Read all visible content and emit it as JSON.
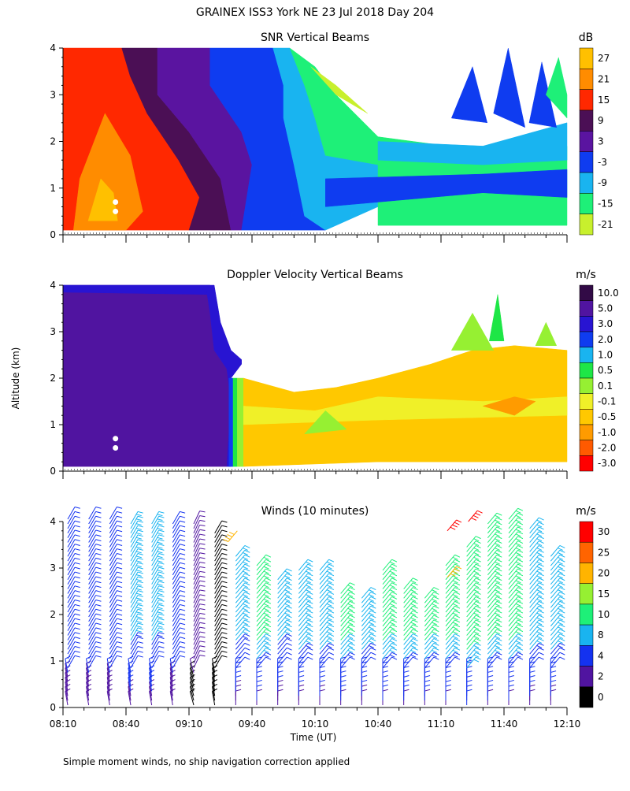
{
  "figure": {
    "title": "GRAINEX ISS3 York NE  23 Jul 2018 Day 204",
    "footnote": "Simple moment winds, no ship navigation correction applied",
    "ylabel": "Altitude (km)",
    "xlabel": "Time (UT)"
  },
  "chart_data": [
    {
      "type": "heatmap",
      "title": "SNR Vertical Beams",
      "units": "dB",
      "y_ticks": [
        "0",
        "1",
        "2",
        "3",
        "4"
      ],
      "ylim": [
        0,
        4
      ],
      "xlim": [
        "08:10",
        "12:10"
      ],
      "colorbar": {
        "labels": [
          "27",
          "21",
          "15",
          "9",
          "3",
          "-3",
          "-9",
          "-15",
          "-21"
        ],
        "colors": [
          "#ffc000",
          "#ff8c00",
          "#ff2800",
          "#4b0f55",
          "#5a14a0",
          "#0f3cf0",
          "#19b4f0",
          "#1ef078",
          "#c8f02d"
        ]
      },
      "regions": [
        {
          "color": "#ff2800",
          "pts": [
            [
              0,
              0.1
            ],
            [
              0,
              4
            ],
            [
              28,
              4
            ],
            [
              32,
              3.4
            ],
            [
              40,
              2.6
            ],
            [
              55,
              1.6
            ],
            [
              65,
              0.8
            ],
            [
              60,
              0.1
            ]
          ]
        },
        {
          "color": "#ff8c00",
          "pts": [
            [
              5,
              0.1
            ],
            [
              8,
              1.2
            ],
            [
              20,
              2.6
            ],
            [
              32,
              1.7
            ],
            [
              38,
              0.5
            ],
            [
              30,
              0.1
            ]
          ]
        },
        {
          "color": "#ffc000",
          "pts": [
            [
              12,
              0.3
            ],
            [
              18,
              1.2
            ],
            [
              24,
              0.9
            ],
            [
              26,
              0.3
            ]
          ]
        },
        {
          "color": "#4b0f55",
          "pts": [
            [
              28,
              4
            ],
            [
              45,
              4
            ],
            [
              45,
              3
            ],
            [
              60,
              2.2
            ],
            [
              75,
              1.2
            ],
            [
              80,
              0.1
            ],
            [
              60,
              0.1
            ],
            [
              65,
              0.8
            ],
            [
              55,
              1.6
            ],
            [
              40,
              2.6
            ],
            [
              32,
              3.4
            ]
          ]
        },
        {
          "color": "#5a14a0",
          "pts": [
            [
              45,
              4
            ],
            [
              70,
              4
            ],
            [
              70,
              3.2
            ],
            [
              85,
              2.2
            ],
            [
              90,
              1.5
            ],
            [
              85,
              0.1
            ],
            [
              80,
              0.1
            ],
            [
              75,
              1.2
            ],
            [
              60,
              2.2
            ],
            [
              45,
              3
            ]
          ]
        },
        {
          "color": "#0f3cf0",
          "pts": [
            [
              70,
              4
            ],
            [
              100,
              4
            ],
            [
              105,
              3.2
            ],
            [
              105,
              2.5
            ],
            [
              110,
              1.5
            ],
            [
              115,
              0.4
            ],
            [
              125,
              0.1
            ],
            [
              85,
              0.1
            ],
            [
              90,
              1.5
            ],
            [
              85,
              2.2
            ],
            [
              70,
              3.2
            ]
          ]
        },
        {
          "color": "#19b4f0",
          "pts": [
            [
              100,
              4
            ],
            [
              108,
              4
            ],
            [
              115,
              3.2
            ],
            [
              120,
              2.5
            ],
            [
              125,
              1.7
            ],
            [
              150,
              1.5
            ],
            [
              150,
              0.6
            ],
            [
              125,
              0.1
            ],
            [
              115,
              0.4
            ],
            [
              110,
              1.5
            ],
            [
              105,
              2.5
            ],
            [
              105,
              3.2
            ]
          ]
        },
        {
          "color": "#1ef078",
          "pts": [
            [
              108,
              4
            ],
            [
              120,
              3.6
            ],
            [
              130,
              3.0
            ],
            [
              150,
              2.1
            ],
            [
              200,
              1.8
            ],
            [
              240,
              1.9
            ],
            [
              240,
              0.2
            ],
            [
              150,
              0.2
            ],
            [
              150,
              0.6
            ],
            [
              150,
              1.5
            ],
            [
              125,
              1.7
            ],
            [
              120,
              2.5
            ],
            [
              115,
              3.2
            ]
          ]
        },
        {
          "color": "#0f3cf0",
          "pts": [
            [
              125,
              1.2
            ],
            [
              200,
              1.3
            ],
            [
              240,
              1.4
            ],
            [
              240,
              0.8
            ],
            [
              200,
              0.9
            ],
            [
              125,
              0.6
            ]
          ]
        },
        {
          "color": "#19b4f0",
          "pts": [
            [
              150,
              2.0
            ],
            [
              200,
              1.9
            ],
            [
              240,
              2.4
            ],
            [
              240,
              1.6
            ],
            [
              200,
              1.5
            ],
            [
              150,
              1.6
            ]
          ]
        },
        {
          "color": "#0f3cf0",
          "pts": [
            [
              185,
              2.5
            ],
            [
              195,
              3.6
            ],
            [
              202,
              2.4
            ]
          ]
        },
        {
          "color": "#0f3cf0",
          "pts": [
            [
              205,
              2.6
            ],
            [
              212,
              4.0
            ],
            [
              220,
              2.3
            ]
          ]
        },
        {
          "color": "#0f3cf0",
          "pts": [
            [
              222,
              2.4
            ],
            [
              228,
              3.7
            ],
            [
              235,
              2.3
            ]
          ]
        },
        {
          "color": "#1ef078",
          "pts": [
            [
              230,
              3.0
            ],
            [
              236,
              3.8
            ],
            [
              240,
              3.0
            ],
            [
              240,
              2.5
            ]
          ]
        },
        {
          "color": "#c8f02d",
          "pts": [
            [
              118,
              3.6
            ],
            [
              130,
              3.2
            ],
            [
              145,
              2.6
            ],
            [
              130,
              3.0
            ]
          ]
        }
      ],
      "dots": [
        [
          25,
          0.7
        ],
        [
          25,
          0.5
        ]
      ]
    },
    {
      "type": "heatmap",
      "title": "Doppler Velocity Vertical Beams",
      "units": "m/s",
      "y_ticks": [
        "0",
        "1",
        "2",
        "3",
        "4"
      ],
      "ylim": [
        0,
        4
      ],
      "xlim": [
        "08:10",
        "12:10"
      ],
      "colorbar": {
        "labels": [
          "10.0",
          "5.0",
          "3.0",
          "2.0",
          "1.0",
          "0.5",
          "0.1",
          "-0.1",
          "-0.5",
          "-1.0",
          "-2.0",
          "-3.0"
        ],
        "colors": [
          "#320a46",
          "#5014a0",
          "#2814d2",
          "#0f3cf0",
          "#19b4f0",
          "#1ee646",
          "#96f032",
          "#f0f028",
          "#ffc800",
          "#ff9b00",
          "#ff5a00",
          "#ff0000"
        ]
      },
      "regions": [
        {
          "color": "#5014a0",
          "pts": [
            [
              0,
              0.1
            ],
            [
              0,
              4
            ],
            [
              68,
              4
            ],
            [
              70,
              3.4
            ],
            [
              72,
              2.6
            ],
            [
              78,
              2.2
            ],
            [
              80,
              1.5
            ],
            [
              78,
              0.1
            ]
          ]
        },
        {
          "color": "#2814d2",
          "pts": [
            [
              0,
              4
            ],
            [
              70,
              4
            ],
            [
              70,
              3.8
            ],
            [
              0,
              3.85
            ]
          ]
        },
        {
          "color": "#2814d2",
          "pts": [
            [
              68,
              4
            ],
            [
              72,
              4
            ],
            [
              75,
              3.2
            ],
            [
              80,
              2.6
            ],
            [
              85,
              2.4
            ],
            [
              85,
              2.3
            ],
            [
              80,
              2.0
            ],
            [
              80,
              0.1
            ],
            [
              78,
              0.1
            ],
            [
              80,
              1.5
            ],
            [
              78,
              2.2
            ],
            [
              72,
              2.6
            ],
            [
              70,
              3.4
            ]
          ]
        },
        {
          "color": "#0f3cf0",
          "pts": [
            [
              79,
              2.0
            ],
            [
              81,
              2.0
            ],
            [
              81,
              0.1
            ],
            [
              79,
              0.1
            ]
          ]
        },
        {
          "color": "#1ee646",
          "pts": [
            [
              81,
              2.0
            ],
            [
              83,
              2.0
            ],
            [
              83,
              0.1
            ],
            [
              81,
              0.1
            ]
          ]
        },
        {
          "color": "#96f032",
          "pts": [
            [
              83,
              2.0
            ],
            [
              86,
              2.0
            ],
            [
              86,
              0.1
            ],
            [
              83,
              0.1
            ]
          ]
        },
        {
          "color": "#ffc800",
          "pts": [
            [
              86,
              2.0
            ],
            [
              110,
              1.7
            ],
            [
              130,
              1.8
            ],
            [
              150,
              2.0
            ],
            [
              175,
              2.3
            ],
            [
              195,
              2.6
            ],
            [
              215,
              2.7
            ],
            [
              240,
              2.6
            ],
            [
              240,
              0.2
            ],
            [
              150,
              0.2
            ],
            [
              86,
              0.1
            ]
          ]
        },
        {
          "color": "#f0f028",
          "pts": [
            [
              86,
              1.4
            ],
            [
              120,
              1.3
            ],
            [
              150,
              1.6
            ],
            [
              200,
              1.5
            ],
            [
              240,
              1.6
            ],
            [
              240,
              1.2
            ],
            [
              150,
              1.1
            ],
            [
              86,
              1.0
            ]
          ]
        },
        {
          "color": "#96f032",
          "pts": [
            [
              115,
              0.8
            ],
            [
              125,
              1.3
            ],
            [
              135,
              0.9
            ]
          ]
        },
        {
          "color": "#96f032",
          "pts": [
            [
              185,
              2.6
            ],
            [
              195,
              3.4
            ],
            [
              205,
              2.6
            ]
          ]
        },
        {
          "color": "#1ee646",
          "pts": [
            [
              203,
              2.8
            ],
            [
              207,
              3.8
            ],
            [
              210,
              2.8
            ]
          ]
        },
        {
          "color": "#96f032",
          "pts": [
            [
              225,
              2.7
            ],
            [
              230,
              3.2
            ],
            [
              235,
              2.7
            ]
          ]
        },
        {
          "color": "#ff9b00",
          "pts": [
            [
              200,
              1.4
            ],
            [
              215,
              1.6
            ],
            [
              225,
              1.5
            ],
            [
              215,
              1.2
            ]
          ]
        }
      ],
      "dots": [
        [
          25,
          0.7
        ],
        [
          25,
          0.5
        ]
      ]
    },
    {
      "type": "wind-barbs",
      "title": "Winds (10 minutes)",
      "units": "m/s",
      "y_ticks": [
        "0",
        "1",
        "2",
        "3",
        "4"
      ],
      "ylim": [
        0,
        4
      ],
      "x_ticks": [
        "08:10",
        "08:40",
        "09:10",
        "09:40",
        "10:10",
        "10:40",
        "11:10",
        "11:40",
        "12:10"
      ],
      "xlim": [
        "08:10",
        "12:10"
      ],
      "colorbar": {
        "labels": [
          "30",
          "25",
          "20",
          "15",
          "10",
          "8",
          "4",
          "2",
          "0"
        ],
        "colors": [
          "#ff0000",
          "#ff6400",
          "#ffb400",
          "#96f032",
          "#1ef078",
          "#19b4f0",
          "#1432f0",
          "#5014a0",
          "#000000"
        ]
      },
      "profiles": [
        {
          "t": "08:10",
          "top": 4.1,
          "dir": 30,
          "speed": 6
        },
        {
          "t": "08:20",
          "top": 4.1,
          "dir": 30,
          "speed": 6
        },
        {
          "t": "08:30",
          "top": 4.1,
          "dir": 30,
          "speed": 6
        },
        {
          "t": "08:40",
          "top": 4.0,
          "dir": 30,
          "speed": 8
        },
        {
          "t": "08:50",
          "top": 4.0,
          "dir": 30,
          "speed": 8
        },
        {
          "t": "09:00",
          "top": 4.0,
          "dir": 30,
          "speed": 6
        },
        {
          "t": "09:10",
          "top": 4.0,
          "dir": 25,
          "speed": 3
        },
        {
          "t": "09:20",
          "top": 3.8,
          "dir": 30,
          "speed": 1
        },
        {
          "t": "09:30",
          "top": 3.3,
          "dir": 40,
          "speed": 8
        },
        {
          "t": "09:40",
          "top": 3.1,
          "dir": 40,
          "speed": 10
        },
        {
          "t": "09:50",
          "top": 2.8,
          "dir": 40,
          "speed": 8
        },
        {
          "t": "10:00",
          "top": 3.0,
          "dir": 40,
          "speed": 9
        },
        {
          "t": "10:10",
          "top": 3.0,
          "dir": 40,
          "speed": 9
        },
        {
          "t": "10:20",
          "top": 2.5,
          "dir": 40,
          "speed": 10
        },
        {
          "t": "10:30",
          "top": 2.4,
          "dir": 40,
          "speed": 9
        },
        {
          "t": "10:40",
          "top": 3.0,
          "dir": 40,
          "speed": 10
        },
        {
          "t": "10:50",
          "top": 2.6,
          "dir": 40,
          "speed": 10
        },
        {
          "t": "11:00",
          "top": 2.4,
          "dir": 40,
          "speed": 10
        },
        {
          "t": "11:10",
          "top": 3.1,
          "dir": 40,
          "speed": 10
        },
        {
          "t": "11:20",
          "top": 3.5,
          "dir": 40,
          "speed": 11
        },
        {
          "t": "11:30",
          "top": 4.0,
          "dir": 40,
          "speed": 10
        },
        {
          "t": "11:40",
          "top": 4.1,
          "dir": 40,
          "speed": 10
        },
        {
          "t": "11:50",
          "top": 3.9,
          "dir": 40,
          "speed": 9
        },
        {
          "t": "12:00",
          "top": 3.3,
          "dir": 40,
          "speed": 9
        }
      ],
      "upper_barbs": [
        {
          "t": "11:10",
          "alt": 3.8,
          "dir": 40,
          "speed": 31
        },
        {
          "t": "11:20",
          "alt": 4.0,
          "dir": 40,
          "speed": 32
        },
        {
          "t": "11:10",
          "alt": 2.8,
          "dir": 40,
          "speed": 24
        },
        {
          "t": "09:30",
          "alt": 3.8,
          "dir": 220,
          "speed": 21
        }
      ]
    }
  ]
}
